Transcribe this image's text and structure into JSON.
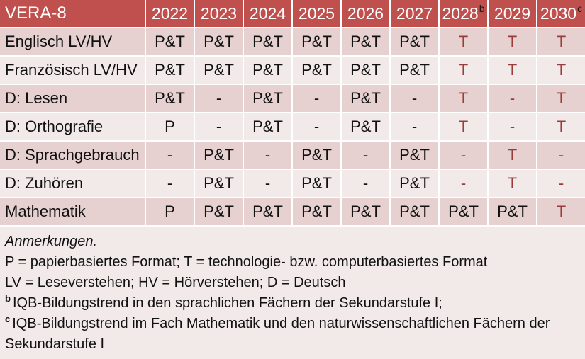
{
  "colors": {
    "header_bg": "#C0504D",
    "header_text": "#FFFFFF",
    "row_dark": "#E6D0D0",
    "row_light": "#F2E9E9",
    "notes_bg": "#F2E9E9",
    "red_text": "#9A3C3A",
    "body_text": "#111111",
    "sup_text": "#1A1A1A"
  },
  "table": {
    "title": "VERA-8",
    "columns": [
      {
        "year": "2022",
        "sup": ""
      },
      {
        "year": "2023",
        "sup": ""
      },
      {
        "year": "2024",
        "sup": ""
      },
      {
        "year": "2025",
        "sup": ""
      },
      {
        "year": "2026",
        "sup": ""
      },
      {
        "year": "2027",
        "sup": ""
      },
      {
        "year": "2028",
        "sup": "b"
      },
      {
        "year": "2029",
        "sup": ""
      },
      {
        "year": "2030",
        "sup": "c"
      }
    ],
    "rows": [
      {
        "label": "Englisch LV/HV",
        "cells": [
          {
            "text": "P&T",
            "red": false
          },
          {
            "text": "P&T",
            "red": false
          },
          {
            "text": "P&T",
            "red": false
          },
          {
            "text": "P&T",
            "red": false
          },
          {
            "text": "P&T",
            "red": false
          },
          {
            "text": "P&T",
            "red": false
          },
          {
            "text": "T",
            "red": true
          },
          {
            "text": "T",
            "red": true
          },
          {
            "text": "T",
            "red": true
          }
        ]
      },
      {
        "label": "Französisch LV/HV",
        "cells": [
          {
            "text": "P&T",
            "red": false
          },
          {
            "text": "P&T",
            "red": false
          },
          {
            "text": "P&T",
            "red": false
          },
          {
            "text": "P&T",
            "red": false
          },
          {
            "text": "P&T",
            "red": false
          },
          {
            "text": "P&T",
            "red": false
          },
          {
            "text": "T",
            "red": true
          },
          {
            "text": "T",
            "red": true
          },
          {
            "text": "T",
            "red": true
          }
        ]
      },
      {
        "label": "D: Lesen",
        "cells": [
          {
            "text": "P&T",
            "red": false
          },
          {
            "text": "-",
            "red": false
          },
          {
            "text": "P&T",
            "red": false
          },
          {
            "text": "-",
            "red": false
          },
          {
            "text": "P&T",
            "red": false
          },
          {
            "text": "-",
            "red": false
          },
          {
            "text": "T",
            "red": true
          },
          {
            "text": "-",
            "red": true
          },
          {
            "text": "T",
            "red": true
          }
        ]
      },
      {
        "label": "D: Orthografie",
        "cells": [
          {
            "text": "P",
            "red": false
          },
          {
            "text": "-",
            "red": false
          },
          {
            "text": "P&T",
            "red": false
          },
          {
            "text": "-",
            "red": false
          },
          {
            "text": "P&T",
            "red": false
          },
          {
            "text": "-",
            "red": false
          },
          {
            "text": "T",
            "red": true
          },
          {
            "text": "-",
            "red": true
          },
          {
            "text": "T",
            "red": true
          }
        ]
      },
      {
        "label": "D: Sprachgebrauch",
        "cells": [
          {
            "text": "-",
            "red": false
          },
          {
            "text": "P&T",
            "red": false
          },
          {
            "text": "-",
            "red": false
          },
          {
            "text": "P&T",
            "red": false
          },
          {
            "text": "-",
            "red": false
          },
          {
            "text": "P&T",
            "red": false
          },
          {
            "text": "-",
            "red": true
          },
          {
            "text": "T",
            "red": true
          },
          {
            "text": "-",
            "red": true
          }
        ]
      },
      {
        "label": "D: Zuhören",
        "cells": [
          {
            "text": "-",
            "red": false
          },
          {
            "text": "P&T",
            "red": false
          },
          {
            "text": "-",
            "red": false
          },
          {
            "text": "P&T",
            "red": false
          },
          {
            "text": "-",
            "red": false
          },
          {
            "text": "P&T",
            "red": false
          },
          {
            "text": "-",
            "red": true
          },
          {
            "text": "T",
            "red": true
          },
          {
            "text": "-",
            "red": true
          }
        ]
      },
      {
        "label": "Mathematik",
        "cells": [
          {
            "text": "P",
            "red": false
          },
          {
            "text": "P&T",
            "red": false
          },
          {
            "text": "P&T",
            "red": false
          },
          {
            "text": "P&T",
            "red": false
          },
          {
            "text": "P&T",
            "red": false
          },
          {
            "text": "P&T",
            "red": false
          },
          {
            "text": "P&T",
            "red": false
          },
          {
            "text": "P&T",
            "red": false
          },
          {
            "text": "T",
            "red": true
          }
        ]
      }
    ]
  },
  "notes": {
    "heading": "Anmerkungen.",
    "line_formats": "P = papierbasiertes Format; T = technologie- bzw. computerbasiertes Format",
    "line_abbreviations": "LV = Leseverstehen; HV = Hörverstehen; D = Deutsch",
    "footnotes": [
      {
        "marker": "b",
        "text": "IQB-Bildungstrend in den sprachlichen Fächern der Sekundarstufe I;"
      },
      {
        "marker": "c",
        "text": "IQB-Bildungstrend im Fach Mathematik und den naturwissenschaftlichen Fächern der Sekundarstufe I"
      }
    ]
  }
}
